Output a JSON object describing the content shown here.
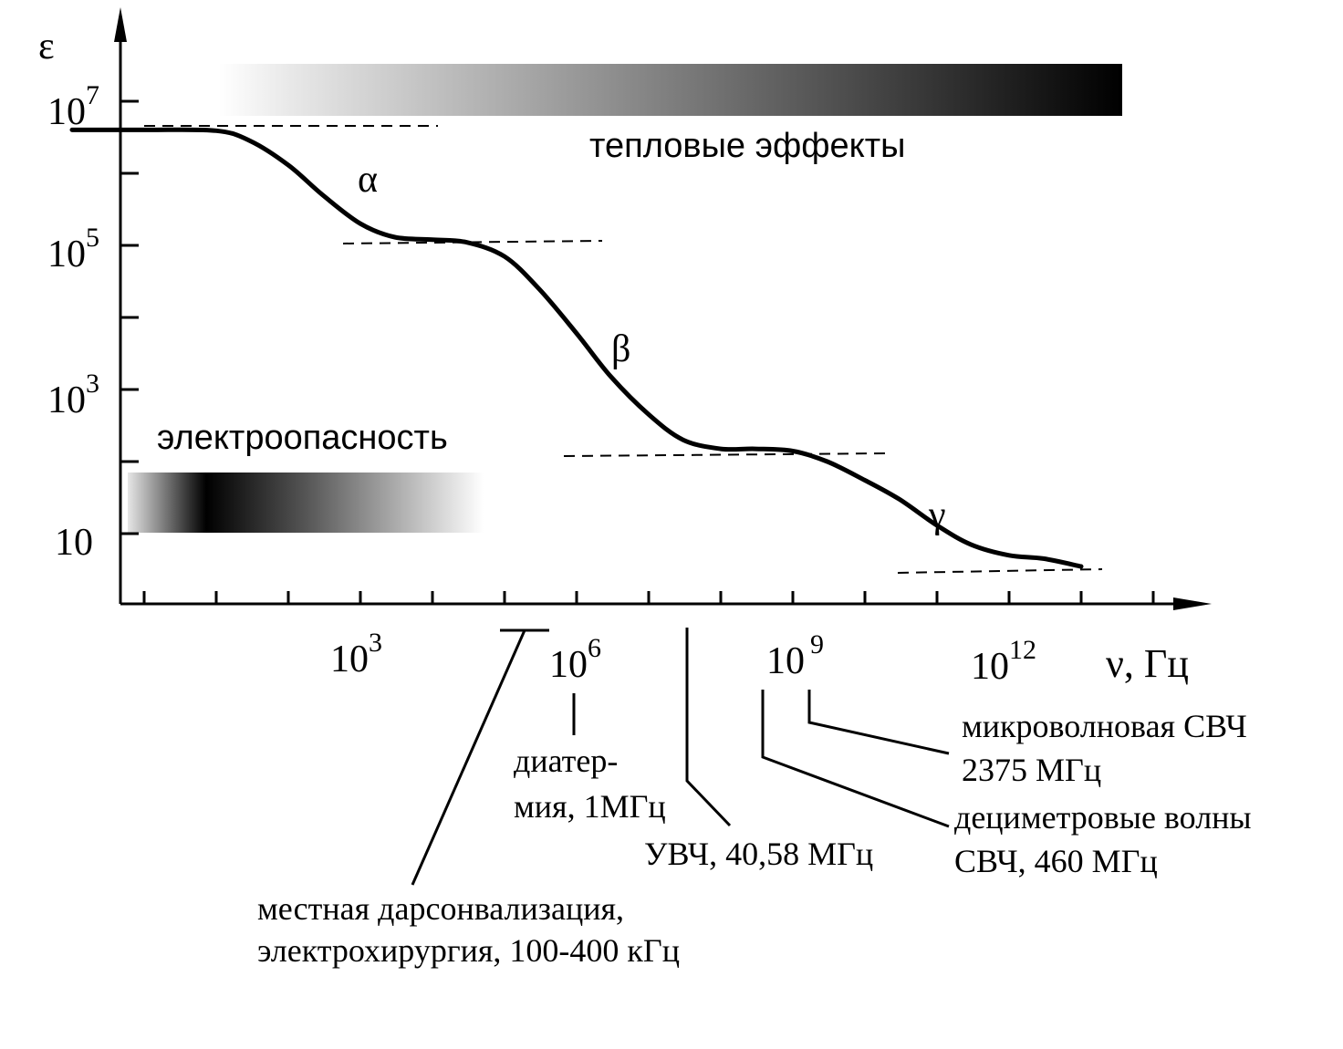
{
  "chart_data": {
    "type": "line",
    "x_scale": "log",
    "y_scale": "log",
    "ylabel": "ε",
    "xlabel": "ν, Гц",
    "y_ticks": [
      {
        "base": "10",
        "exp": "7"
      },
      {
        "base": "10",
        "exp": "5"
      },
      {
        "base": "10",
        "exp": "3"
      },
      {
        "base": "10",
        "exp": ""
      }
    ],
    "x_ticks": [
      {
        "base": "10",
        "exp": "3"
      },
      {
        "base": "10",
        "exp": "6"
      },
      {
        "base": "10",
        "exp": "9"
      },
      {
        "base": "10",
        "exp": "12"
      }
    ],
    "series": [
      {
        "x": [
          0.1,
          1,
          10,
          30,
          100,
          300,
          1000,
          3000,
          10000,
          30000,
          100000,
          300000,
          1000000,
          3000000,
          10000000,
          30000000,
          100000000,
          300000000,
          1000000000,
          3000000000,
          10000000000,
          30000000000,
          100000000000,
          300000000000,
          1000000000000,
          3000000000000,
          10000000000000
        ],
        "y": [
          4000000,
          4000000,
          3900000,
          2800000,
          1300000,
          500000,
          200000,
          130000,
          120000,
          110000,
          70000,
          25000,
          6000,
          1500,
          450,
          200,
          150,
          150,
          140,
          100,
          55,
          30,
          13,
          7,
          5,
          4.5,
          3.5
        ]
      }
    ],
    "plateaus": [
      {
        "level": 4000000
      },
      {
        "level": 110000
      },
      {
        "level": 140
      },
      {
        "level": 5
      }
    ],
    "dispersion_labels": [
      "α",
      "β",
      "γ"
    ],
    "bands": [
      {
        "label": "тепловые эффекты",
        "gradient": "white-to-black"
      },
      {
        "label": "электроопасность",
        "gradient": "black-peak"
      }
    ],
    "annotations": [
      {
        "lines": [
          "местная дарсонвализация,",
          "электрохирургия, 100-400 кГц"
        ]
      },
      {
        "lines": [
          "диатер-",
          "мия, 1МГц"
        ]
      },
      {
        "lines": [
          "УВЧ, 40,58 МГц"
        ]
      },
      {
        "lines": [
          "дециметровые волны",
          "СВЧ, 460 МГц"
        ]
      },
      {
        "lines": [
          "микроволновая СВЧ",
          "2375 МГц"
        ]
      }
    ],
    "colors": {
      "line": "#000000",
      "band_dark": "#000000",
      "band_light": "#ffffff"
    }
  }
}
